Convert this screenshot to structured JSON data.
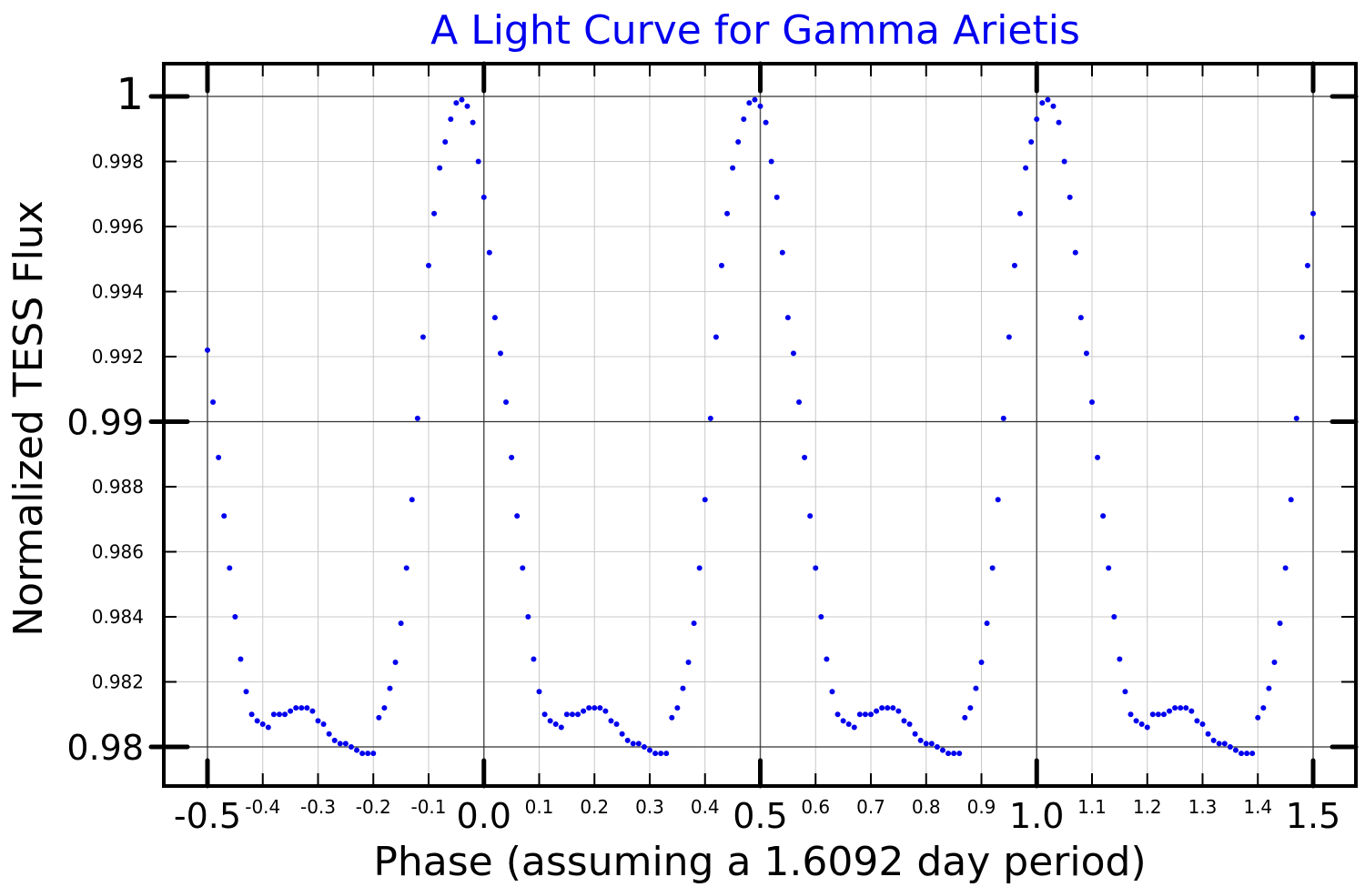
{
  "chart_data": {
    "type": "scatter",
    "title": "A Light Curve for Gamma Arietis",
    "xlabel": "Phase (assuming a 1.6092 day period)",
    "ylabel": "Normalized TESS Flux",
    "xlim": [
      -0.5,
      1.5
    ],
    "ylim": [
      0.9788,
      1.001
    ],
    "grid": true,
    "series_color": "#0000ee",
    "x_major_ticks": [
      {
        "value": -0.5,
        "label": "-0.5"
      },
      {
        "value": 0.0,
        "label": "0.0"
      },
      {
        "value": 0.5,
        "label": "0.5"
      },
      {
        "value": 1.0,
        "label": "1.0"
      },
      {
        "value": 1.5,
        "label": "1.5"
      }
    ],
    "x_minor_ticks": [
      {
        "value": -0.4,
        "label": "-0.4"
      },
      {
        "value": -0.3,
        "label": "-0.3"
      },
      {
        "value": -0.2,
        "label": "-0.2"
      },
      {
        "value": -0.1,
        "label": "-0.1"
      },
      {
        "value": 0.1,
        "label": "0.1"
      },
      {
        "value": 0.2,
        "label": "0.2"
      },
      {
        "value": 0.3,
        "label": "0.3"
      },
      {
        "value": 0.4,
        "label": "0.4"
      },
      {
        "value": 0.6,
        "label": "0.6"
      },
      {
        "value": 0.7,
        "label": "0.7"
      },
      {
        "value": 0.8,
        "label": "0.8"
      },
      {
        "value": 0.9,
        "label": "0.9"
      },
      {
        "value": 1.1,
        "label": "1.1"
      },
      {
        "value": 1.2,
        "label": "1.2"
      },
      {
        "value": 1.3,
        "label": "1.3"
      },
      {
        "value": 1.4,
        "label": "1.4"
      }
    ],
    "y_major_ticks": [
      {
        "value": 1.0,
        "label": "1"
      },
      {
        "value": 0.99,
        "label": "0.99"
      },
      {
        "value": 0.98,
        "label": "0.98"
      }
    ],
    "y_minor_ticks": [
      {
        "value": 0.998,
        "label": "0.998"
      },
      {
        "value": 0.996,
        "label": "0.996"
      },
      {
        "value": 0.994,
        "label": "0.994"
      },
      {
        "value": 0.992,
        "label": "0.992"
      },
      {
        "value": 0.988,
        "label": "0.988"
      },
      {
        "value": 0.986,
        "label": "0.986"
      },
      {
        "value": 0.984,
        "label": "0.984"
      },
      {
        "value": 0.982,
        "label": "0.982"
      }
    ],
    "series": [
      {
        "x": [
          -0.5,
          -0.49,
          -0.48,
          -0.47,
          -0.46,
          -0.45,
          -0.44,
          -0.43,
          -0.42,
          -0.41,
          -0.4,
          -0.39,
          -0.38,
          -0.37,
          -0.36,
          -0.35,
          -0.34,
          -0.33,
          -0.32,
          -0.31,
          -0.3,
          -0.29,
          -0.28,
          -0.27,
          -0.26,
          -0.25,
          -0.24,
          -0.23,
          -0.22,
          -0.21,
          -0.2,
          -0.19,
          -0.18,
          -0.17,
          -0.16,
          -0.15,
          -0.14,
          -0.13,
          -0.12,
          -0.11,
          -0.1,
          -0.09,
          -0.08,
          -0.07,
          -0.06,
          -0.05,
          -0.04,
          -0.03,
          -0.02,
          -0.01,
          0.0,
          0.01,
          0.02,
          0.03,
          0.04,
          0.05,
          0.06,
          0.07,
          0.08,
          0.09,
          0.1,
          0.11,
          0.12,
          0.13,
          0.14,
          0.15,
          0.16,
          0.17,
          0.18,
          0.19,
          0.2,
          0.21,
          0.22,
          0.23,
          0.24,
          0.25,
          0.26,
          0.27,
          0.28,
          0.29,
          0.3,
          0.31,
          0.32,
          0.33,
          0.34,
          0.35,
          0.36,
          0.37,
          0.38,
          0.39,
          0.4,
          0.41,
          0.42,
          0.43,
          0.44,
          0.45,
          0.46,
          0.47,
          0.48,
          0.49,
          0.5,
          0.51,
          0.52,
          0.53,
          0.54,
          0.55,
          0.56,
          0.57,
          0.58,
          0.59,
          0.6,
          0.61,
          0.62,
          0.63,
          0.64,
          0.65,
          0.66,
          0.67,
          0.68,
          0.69,
          0.7,
          0.71,
          0.72,
          0.73,
          0.74,
          0.75,
          0.76,
          0.77,
          0.78,
          0.79,
          0.8,
          0.81,
          0.82,
          0.83,
          0.84,
          0.85,
          0.86,
          0.87,
          0.88,
          0.89,
          0.9,
          0.91,
          0.92,
          0.93,
          0.94,
          0.95,
          0.96,
          0.97,
          0.98,
          0.99,
          1.0,
          1.01,
          1.02,
          1.03,
          1.04,
          1.05,
          1.06,
          1.07,
          1.08,
          1.09,
          1.1,
          1.11,
          1.12,
          1.13,
          1.14,
          1.15,
          1.16,
          1.17,
          1.18,
          1.19,
          1.2,
          1.21,
          1.22,
          1.23,
          1.24,
          1.25,
          1.26,
          1.27,
          1.28,
          1.29,
          1.3,
          1.31,
          1.32,
          1.33,
          1.34,
          1.35,
          1.36,
          1.37,
          1.38,
          1.39,
          1.4,
          1.41,
          1.42,
          1.43,
          1.44,
          1.45,
          1.46,
          1.47,
          1.48,
          1.49,
          1.5
        ],
        "y": [
          0.9922,
          0.9906,
          0.9889,
          0.9871,
          0.9855,
          0.984,
          0.9827,
          0.9817,
          0.981,
          0.9808,
          0.9807,
          0.9806,
          0.981,
          0.981,
          0.981,
          0.9811,
          0.9812,
          0.9812,
          0.9812,
          0.9811,
          0.9808,
          0.9807,
          0.9804,
          0.9802,
          0.9801,
          0.9801,
          0.98,
          0.9799,
          0.9798,
          0.9798,
          0.9798,
          0.9809,
          0.9812,
          0.9818,
          0.9826,
          0.9838,
          0.9855,
          0.9876,
          0.9901,
          0.9926,
          0.9948,
          0.9964,
          0.9978,
          0.9986,
          0.9993,
          0.9998,
          0.9999,
          0.9997,
          0.9992,
          0.998,
          0.9969,
          0.9952,
          0.9932,
          0.9921,
          0.9906,
          0.9889,
          0.9871,
          0.9855,
          0.984,
          0.9827,
          0.9817,
          0.981,
          0.9808,
          0.9807,
          0.9806,
          0.981,
          0.981,
          0.981,
          0.9811,
          0.9812,
          0.9812,
          0.9812,
          0.9811,
          0.9808,
          0.9807,
          0.9804,
          0.9802,
          0.9801,
          0.9801,
          0.98,
          0.9799,
          0.9798,
          0.9798,
          0.9798,
          0.9809,
          0.9812,
          0.9818,
          0.9826,
          0.9838,
          0.9855,
          0.9876,
          0.9901,
          0.9926,
          0.9948,
          0.9964,
          0.9978,
          0.9986,
          0.9993,
          0.9998,
          0.9999,
          0.9997,
          0.9992,
          0.998,
          0.9969,
          0.9952,
          0.9932,
          0.9921,
          0.9906,
          0.9889,
          0.9871,
          0.9855,
          0.984,
          0.9827,
          0.9817,
          0.981,
          0.9808,
          0.9807,
          0.9806,
          0.981,
          0.981,
          0.981,
          0.9811,
          0.9812,
          0.9812,
          0.9812,
          0.9811,
          0.9808,
          0.9807,
          0.9804,
          0.9802,
          0.9801,
          0.9801,
          0.98,
          0.9799,
          0.9798,
          0.9798,
          0.9798,
          0.9809,
          0.9812,
          0.9818,
          0.9826,
          0.9838,
          0.9855,
          0.9876,
          0.9901,
          0.9926,
          0.9948,
          0.9964,
          0.9978,
          0.9986,
          0.9993,
          0.9998,
          0.9999,
          0.9997,
          0.9992,
          0.998,
          0.9969,
          0.9952,
          0.9932,
          0.9921,
          0.9906,
          0.9889,
          0.9871,
          0.9855,
          0.984,
          0.9827,
          0.9817,
          0.981,
          0.9808,
          0.9807,
          0.9806,
          0.981,
          0.981,
          0.981,
          0.9811,
          0.9812,
          0.9812,
          0.9812,
          0.9811,
          0.9808,
          0.9807,
          0.9804,
          0.9802,
          0.9801,
          0.9801,
          0.98,
          0.9799,
          0.9798,
          0.9798,
          0.9798,
          0.9809,
          0.9812,
          0.9818,
          0.9826,
          0.9838,
          0.9855,
          0.9876,
          0.9901,
          0.9926,
          0.9948,
          0.9964
        ]
      }
    ]
  }
}
